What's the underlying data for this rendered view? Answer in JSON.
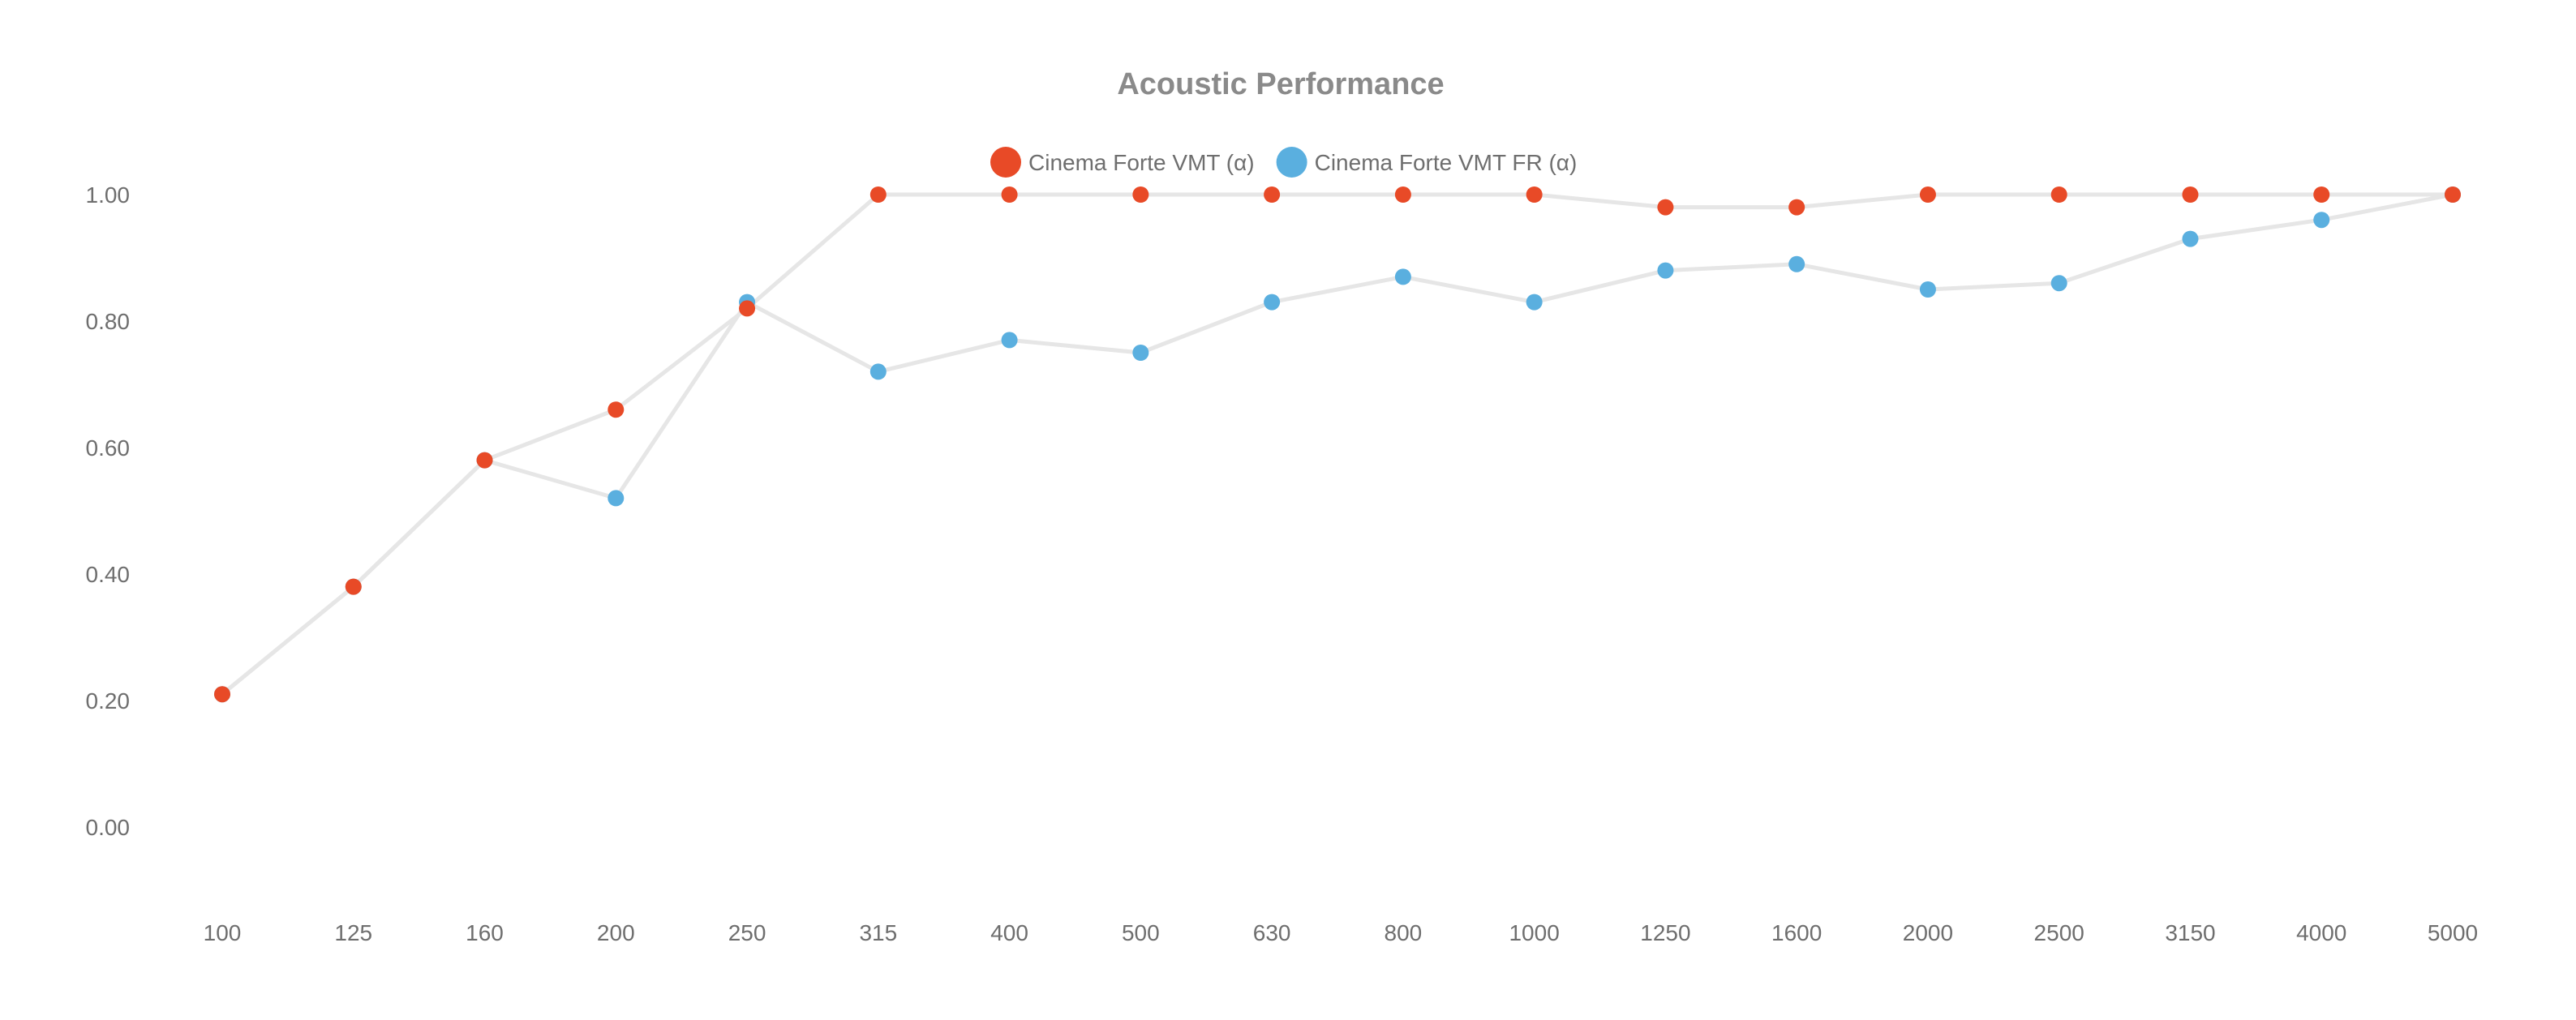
{
  "chart_data": {
    "type": "line",
    "title": "Acoustic Performance",
    "xlabel": "",
    "ylabel": "",
    "categories": [
      "100",
      "125",
      "160",
      "200",
      "250",
      "315",
      "400",
      "500",
      "630",
      "800",
      "1000",
      "1250",
      "1600",
      "2000",
      "2500",
      "3150",
      "4000",
      "5000"
    ],
    "yticks": [
      "0.00",
      "0.20",
      "0.40",
      "0.60",
      "0.80",
      "1.00"
    ],
    "ylim": [
      0,
      1
    ],
    "grid": false,
    "legend_position": "top-center",
    "line_color": "#e6e6e6",
    "series": [
      {
        "name": "Cinema Forte VMT FR (α)",
        "color": "#5aafdf",
        "values": [
          0.21,
          0.38,
          0.58,
          0.52,
          0.83,
          0.72,
          0.77,
          0.75,
          0.83,
          0.87,
          0.83,
          0.88,
          0.89,
          0.85,
          0.86,
          0.93,
          0.96,
          1.0
        ]
      },
      {
        "name": "Cinema Forte VMT (α)",
        "color": "#e84a27",
        "values": [
          0.21,
          0.38,
          0.58,
          0.66,
          0.82,
          1.0,
          1.0,
          1.0,
          1.0,
          1.0,
          1.0,
          0.98,
          0.98,
          1.0,
          1.0,
          1.0,
          1.0,
          1.0
        ]
      }
    ],
    "legend_order": [
      1,
      0
    ]
  }
}
